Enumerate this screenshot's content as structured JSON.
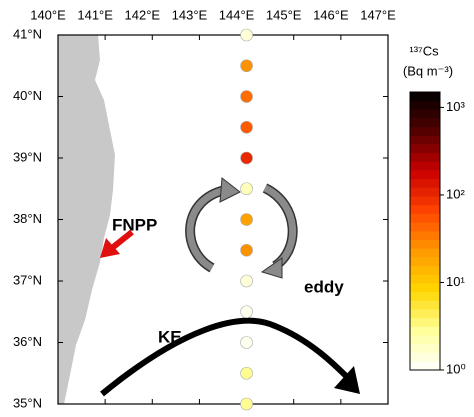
{
  "chart_data": {
    "type": "scatter",
    "xlim": [
      140,
      147
    ],
    "ylim": [
      35,
      41
    ],
    "xticks": [
      {
        "value": 140,
        "label": "140°E"
      },
      {
        "value": 141,
        "label": "141°E"
      },
      {
        "value": 142,
        "label": "142°E"
      },
      {
        "value": 143,
        "label": "143°E"
      },
      {
        "value": 144,
        "label": "144°E"
      },
      {
        "value": 145,
        "label": "145°E"
      },
      {
        "value": 146,
        "label": "146°E"
      },
      {
        "value": 147,
        "label": "147°E"
      }
    ],
    "yticks": [
      {
        "value": 35,
        "label": "35°N"
      },
      {
        "value": 36,
        "label": "36°N"
      },
      {
        "value": 37,
        "label": "37°N"
      },
      {
        "value": 38,
        "label": "38°N"
      },
      {
        "value": 39,
        "label": "39°N"
      },
      {
        "value": 40,
        "label": "40°N"
      },
      {
        "value": 41,
        "label": "41°N"
      }
    ],
    "x": [
      144,
      144,
      144,
      144,
      144,
      144,
      144,
      144,
      144,
      144,
      144,
      144,
      144
    ],
    "y": [
      41,
      40.5,
      40,
      39.5,
      39,
      38.5,
      38,
      37.5,
      37,
      36.5,
      36,
      35.5,
      35
    ],
    "values": [
      1.5,
      25,
      40,
      50,
      100,
      2,
      20,
      25,
      1.5,
      1.2,
      1.2,
      3,
      3
    ],
    "colorbar": {
      "title": "¹³⁷Cs",
      "unit": "(Bq m⁻³)",
      "log": true,
      "lim": [
        1,
        1500
      ],
      "ticks": [
        {
          "value": 1,
          "label": "10⁰"
        },
        {
          "value": 10,
          "label": "10¹"
        },
        {
          "value": 100,
          "label": "10²"
        },
        {
          "value": 1000,
          "label": "10³"
        }
      ],
      "colors": [
        "#ffffff",
        "#ffff99",
        "#ffd700",
        "#ff9900",
        "#ff4400",
        "#cc0000",
        "#550000",
        "#000000"
      ]
    },
    "annotations": [
      "FNPP",
      "eddy",
      "KE"
    ]
  }
}
